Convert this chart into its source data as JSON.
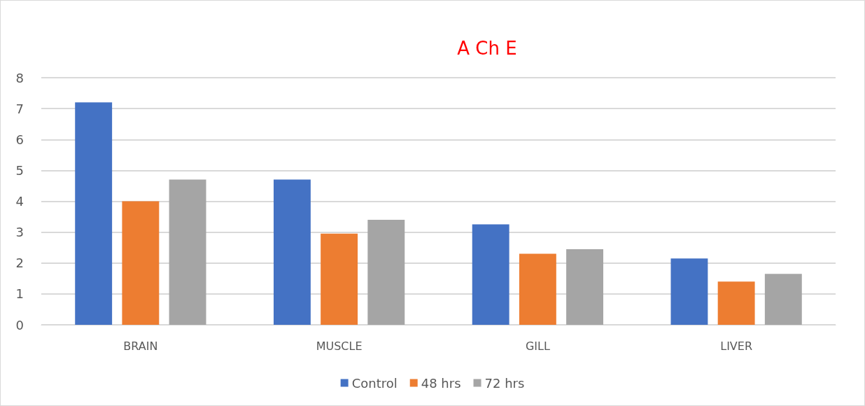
{
  "chart_data": {
    "type": "bar",
    "title": "A Ch E",
    "categories": [
      "BRAIN",
      "MUSCLE",
      "GILL",
      "LIVER"
    ],
    "series": [
      {
        "name": "Control",
        "color": "#4472c4",
        "values": [
          7.2,
          4.7,
          3.25,
          2.15
        ]
      },
      {
        "name": "48 hrs",
        "color": "#ed7d31",
        "values": [
          4.0,
          2.95,
          2.3,
          1.4
        ]
      },
      {
        "name": "72 hrs",
        "color": "#a5a5a5",
        "values": [
          4.7,
          3.4,
          2.45,
          1.65
        ]
      }
    ],
    "ylim": [
      0,
      8
    ],
    "yticks": [
      0,
      1,
      2,
      3,
      4,
      5,
      6,
      7,
      8
    ],
    "grid": "y",
    "legend": "bottom"
  }
}
